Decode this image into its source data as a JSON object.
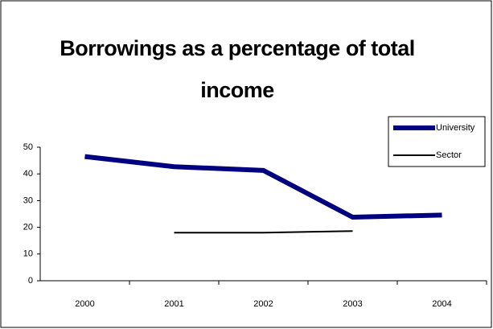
{
  "chart_data": {
    "type": "line",
    "title": "Borrowings as a percentage of total income",
    "categories": [
      "2000",
      "2001",
      "2002",
      "2003",
      "2004"
    ],
    "series": [
      {
        "name": "University",
        "color": "#000080",
        "values": [
          46.5,
          42.7,
          41.3,
          23.8,
          24.6
        ]
      },
      {
        "name": "Sector",
        "color": "#000000",
        "values": [
          null,
          18,
          18,
          18.6,
          null
        ]
      }
    ],
    "ylim": [
      0,
      50
    ],
    "yticks": [
      0,
      10,
      20,
      30,
      40,
      50
    ],
    "grid": false,
    "legend": "upper right"
  }
}
